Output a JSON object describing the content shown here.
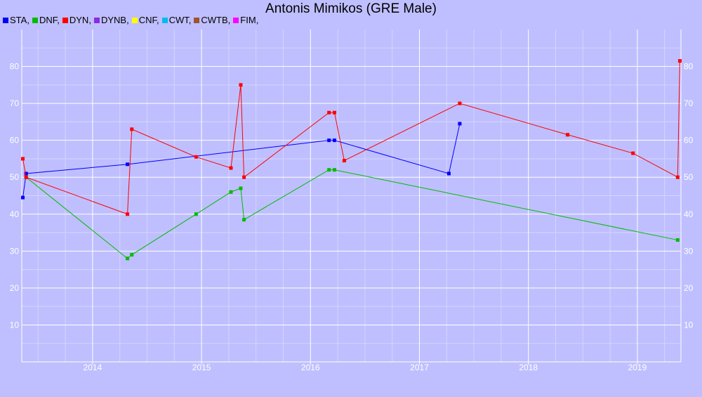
{
  "chart_data": {
    "type": "line",
    "title": "Antonis Mimikos (GRE Male)",
    "xlabel": "",
    "ylabel": "",
    "legend": [
      {
        "name": "STA",
        "color": "#0000ff"
      },
      {
        "name": "DNF",
        "color": "#00bb00"
      },
      {
        "name": "DYN",
        "color": "#ff0000"
      },
      {
        "name": "DYNB",
        "color": "#8a2be2"
      },
      {
        "name": "CNF",
        "color": "#ffff00"
      },
      {
        "name": "CWT",
        "color": "#00bbee"
      },
      {
        "name": "CWTB",
        "color": "#a0522d"
      },
      {
        "name": "FIM",
        "color": "#ff00ff"
      }
    ],
    "legend_suffix": ",",
    "x_ticks": [
      "2014",
      "2015",
      "2016",
      "2017",
      "2018",
      "2019"
    ],
    "y_ticks": [
      "10",
      "20",
      "30",
      "40",
      "50",
      "60",
      "70",
      "80"
    ],
    "xlim": [
      2013.35,
      2019.4
    ],
    "ylim": [
      0,
      90
    ],
    "grid": true,
    "legend_position": "top-left",
    "series": [
      {
        "name": "STA",
        "color": "#0000ff",
        "points": [
          [
            2013.36,
            44.5
          ],
          [
            2013.39,
            51
          ],
          [
            2014.32,
            53.5
          ],
          [
            2016.17,
            60
          ],
          [
            2016.22,
            60
          ],
          [
            2017.27,
            51
          ],
          [
            2017.37,
            64.5
          ]
        ]
      },
      {
        "name": "DNF",
        "color": "#00bb00",
        "points": [
          [
            2013.39,
            50
          ],
          [
            2014.32,
            28
          ],
          [
            2014.36,
            29
          ],
          [
            2014.95,
            40
          ],
          [
            2015.27,
            46
          ],
          [
            2015.36,
            47
          ],
          [
            2015.39,
            38.5
          ],
          [
            2016.17,
            52
          ],
          [
            2016.22,
            52
          ],
          [
            2019.37,
            33
          ]
        ]
      },
      {
        "name": "DYN",
        "color": "#ff0000",
        "points": [
          [
            2013.36,
            55
          ],
          [
            2013.39,
            50
          ],
          [
            2014.32,
            40
          ],
          [
            2014.36,
            63
          ],
          [
            2014.95,
            55.5
          ],
          [
            2015.27,
            52.5
          ],
          [
            2015.36,
            75
          ],
          [
            2015.39,
            50
          ],
          [
            2016.17,
            67.5
          ],
          [
            2016.22,
            67.5
          ],
          [
            2016.31,
            54.5
          ],
          [
            2017.37,
            70
          ],
          [
            2018.36,
            61.5
          ],
          [
            2018.96,
            56.5
          ],
          [
            2019.37,
            50
          ],
          [
            2019.39,
            81.5
          ]
        ]
      }
    ]
  }
}
